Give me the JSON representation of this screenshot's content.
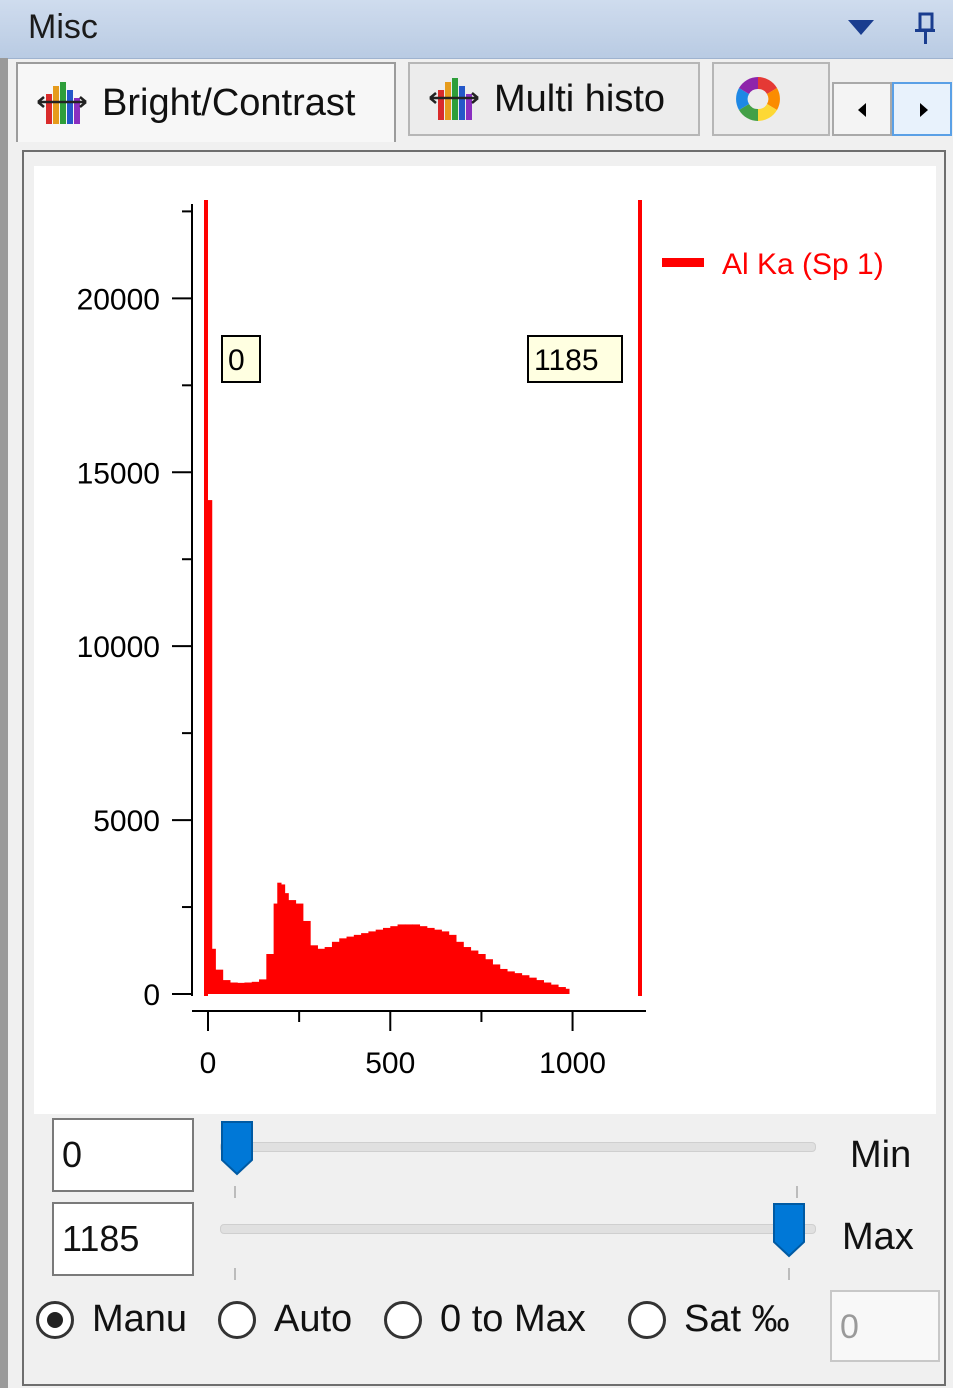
{
  "window": {
    "title": "Misc"
  },
  "tabs": [
    {
      "label": "Bright/Contrast",
      "active": true
    },
    {
      "label": "Multi histo",
      "active": false
    },
    {
      "label": "",
      "active": false,
      "icon": "color-wheel-icon"
    }
  ],
  "scroll_icons": {
    "left": "scroll-left-icon",
    "right": "scroll-right-icon"
  },
  "accent_color": "#0078d7",
  "series_color": "#ff0000",
  "chart_data": {
    "type": "bar",
    "x": [
      0,
      10,
      20,
      40,
      60,
      80,
      100,
      120,
      140,
      160,
      180,
      190,
      200,
      210,
      220,
      240,
      260,
      280,
      300,
      320,
      340,
      360,
      380,
      400,
      420,
      440,
      460,
      480,
      500,
      520,
      540,
      560,
      580,
      600,
      620,
      640,
      660,
      680,
      700,
      720,
      740,
      760,
      780,
      800,
      820,
      840,
      860,
      880,
      900,
      920,
      940,
      960,
      980
    ],
    "y": [
      14200,
      1300,
      700,
      400,
      330,
      320,
      330,
      350,
      420,
      1150,
      2600,
      3200,
      3150,
      2900,
      2700,
      2600,
      2100,
      1400,
      1300,
      1350,
      1500,
      1600,
      1650,
      1700,
      1750,
      1800,
      1850,
      1900,
      1950,
      2000,
      2000,
      2000,
      1950,
      1900,
      1850,
      1800,
      1700,
      1500,
      1350,
      1250,
      1150,
      1000,
      850,
      720,
      650,
      600,
      540,
      470,
      400,
      330,
      270,
      200,
      150
    ],
    "series": [
      {
        "name": "Al Ka (Sp 1)",
        "color": "#ff0000"
      }
    ],
    "xlim": [
      0,
      1185
    ],
    "ylim": [
      0,
      23000
    ],
    "xticks": [
      0,
      500,
      1000
    ],
    "yticks": [
      0,
      5000,
      10000,
      15000,
      20000
    ],
    "xtick_labels": [
      "0",
      "500",
      "1000"
    ],
    "ytick_labels": [
      "0",
      "5000",
      "10000",
      "15000",
      "20000"
    ],
    "markers": [
      {
        "value": 0,
        "label": "0"
      },
      {
        "value": 1185,
        "label": "1185"
      }
    ],
    "legend": "top-right",
    "grid": false
  },
  "controls": {
    "min": {
      "value": "0",
      "label": "Min",
      "fraction": 0.0
    },
    "max": {
      "value": "1185",
      "label": "Max",
      "fraction": 1.0
    }
  },
  "radios": [
    {
      "label": "Manu",
      "checked": true
    },
    {
      "label": "Auto",
      "checked": false
    },
    {
      "label": "0 to Max",
      "checked": false
    },
    {
      "label": "Sat ‰",
      "checked": false
    }
  ],
  "sat_value": "0"
}
